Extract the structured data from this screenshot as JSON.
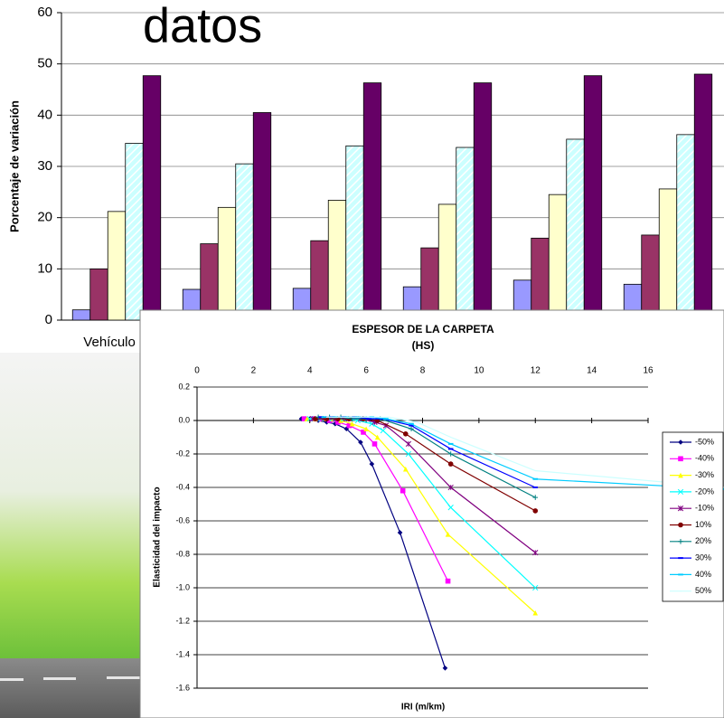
{
  "chart_data": [
    {
      "type": "bar",
      "title": "datos",
      "y_label": "Porcentaje de variación",
      "categories": [
        "Vehículo Li",
        null,
        null,
        null,
        null,
        null
      ],
      "ylim": [
        0,
        60
      ],
      "yticks": [
        0,
        10,
        20,
        30,
        40,
        50,
        60
      ],
      "grid": true,
      "series": [
        {
          "color": "#9999ff",
          "values": [
            2,
            6,
            6.2,
            6.5,
            7.8,
            7
          ]
        },
        {
          "color": "#993366",
          "values": [
            10,
            14.9,
            15.5,
            14.1,
            16,
            16.6
          ]
        },
        {
          "color": "#ffffcc",
          "values": [
            21.2,
            22,
            23.4,
            22.6,
            24.5,
            25.6
          ]
        },
        {
          "color": "#ccffff",
          "hatch": true,
          "values": [
            34.5,
            30.5,
            34,
            33.7,
            35.3,
            36.2
          ]
        },
        {
          "color": "#660066",
          "values": [
            47.7,
            40.5,
            46.3,
            46.3,
            47.7,
            48
          ]
        }
      ]
    },
    {
      "type": "line",
      "title": "ESPESOR DE LA CARPETA",
      "subtitle": "(HS)",
      "x_label": "IRI (m/km)",
      "y_label": "Elasticidad del impacto",
      "xlim": [
        0,
        16
      ],
      "xticks": [
        0,
        2,
        4,
        6,
        8,
        10,
        12,
        14,
        16
      ],
      "ylim": [
        -1.6,
        0.2
      ],
      "yticks": [
        0.2,
        {
          "value": 0,
          "label": "0.0"
        },
        -0.2,
        -0.4,
        -0.6,
        -0.8,
        {
          "value": -1,
          "label": "-1.0"
        },
        -1.2,
        -1.4,
        -1.6
      ],
      "grid": true,
      "legend": "right",
      "series": [
        {
          "name": "-50%",
          "color": "#000080",
          "marker": "diamond",
          "x": [
            3.7,
            4.0,
            4.3,
            4.6,
            4.9,
            5.3,
            5.8,
            6.2,
            7.2,
            8.8
          ],
          "values": [
            0.01,
            0.01,
            0,
            -0.01,
            -0.02,
            -0.05,
            -0.13,
            -0.26,
            -0.67,
            -1.48
          ]
        },
        {
          "name": "-40%",
          "color": "#ff00ff",
          "marker": "square",
          "x": [
            3.8,
            4.1,
            4.4,
            4.7,
            5.0,
            5.4,
            5.9,
            6.3,
            7.3,
            8.9
          ],
          "values": [
            0.01,
            0.01,
            0.01,
            0,
            -0.01,
            -0.03,
            -0.07,
            -0.14,
            -0.42,
            -0.96
          ]
        },
        {
          "name": "-30%",
          "color": "#ffff00",
          "marker": "triangle",
          "x": [
            3.9,
            4.2,
            4.5,
            4.8,
            5.1,
            5.5,
            6.0,
            6.4,
            7.4,
            8.9,
            12
          ],
          "values": [
            0.01,
            0.01,
            0.01,
            0.01,
            0,
            -0.02,
            -0.05,
            -0.1,
            -0.29,
            -0.68,
            -1.15
          ]
        },
        {
          "name": "-20%",
          "color": "#00ffff",
          "marker": "x",
          "x": [
            4.0,
            4.4,
            4.8,
            5.2,
            5.7,
            6.2,
            6.6,
            7.5,
            9,
            12
          ],
          "values": [
            0.01,
            0.01,
            0.01,
            0.01,
            0,
            -0.02,
            -0.06,
            -0.2,
            -0.52,
            -1.0
          ]
        },
        {
          "name": "-10%",
          "color": "#800080",
          "marker": "star",
          "x": [
            4.1,
            4.5,
            4.9,
            5.3,
            5.8,
            6.3,
            6.7,
            7.5,
            9,
            12
          ],
          "values": [
            0.01,
            0.01,
            0.01,
            0.01,
            0.01,
            -0.01,
            -0.03,
            -0.14,
            -0.4,
            -0.79
          ]
        },
        {
          "name": "10%",
          "color": "#800000",
          "marker": "circle",
          "x": [
            4.2,
            4.6,
            5.0,
            5.4,
            5.9,
            6.4,
            7.4,
            9,
            12
          ],
          "values": [
            0.01,
            0.01,
            0.01,
            0.01,
            0.01,
            0,
            -0.08,
            -0.26,
            -0.54
          ]
        },
        {
          "name": "20%",
          "color": "#008080",
          "marker": "plus",
          "x": [
            4.3,
            4.7,
            5.1,
            5.5,
            6.0,
            6.5,
            7.6,
            9,
            12
          ],
          "values": [
            0.02,
            0.02,
            0.02,
            0.01,
            0.01,
            0.01,
            -0.05,
            -0.2,
            -0.46
          ]
        },
        {
          "name": "30%",
          "color": "#0000ff",
          "marker": "dash",
          "x": [
            4.4,
            4.8,
            5.2,
            5.6,
            6.1,
            6.6,
            7.6,
            9,
            12
          ],
          "values": [
            0.02,
            0.02,
            0.02,
            0.02,
            0.01,
            0.01,
            -0.03,
            -0.17,
            -0.4
          ]
        },
        {
          "name": "40%",
          "color": "#00ccff",
          "marker": "dash",
          "x": [
            4.5,
            4.9,
            5.3,
            5.7,
            6.2,
            6.7,
            7.6,
            9,
            12,
            18.7
          ],
          "values": [
            0.02,
            0.02,
            0.02,
            0.02,
            0.02,
            0.01,
            -0.02,
            -0.14,
            -0.35,
            -0.41
          ]
        },
        {
          "name": "50%",
          "color": "#ccffff",
          "marker": "none",
          "x": [
            4.6,
            5.0,
            5.4,
            5.8,
            6.3,
            6.8,
            7.8,
            9,
            12,
            18.7
          ],
          "values": [
            0.02,
            0.02,
            0.02,
            0.02,
            0.02,
            0.02,
            -0.01,
            -0.1,
            -0.3,
            -0.4
          ]
        }
      ]
    }
  ]
}
